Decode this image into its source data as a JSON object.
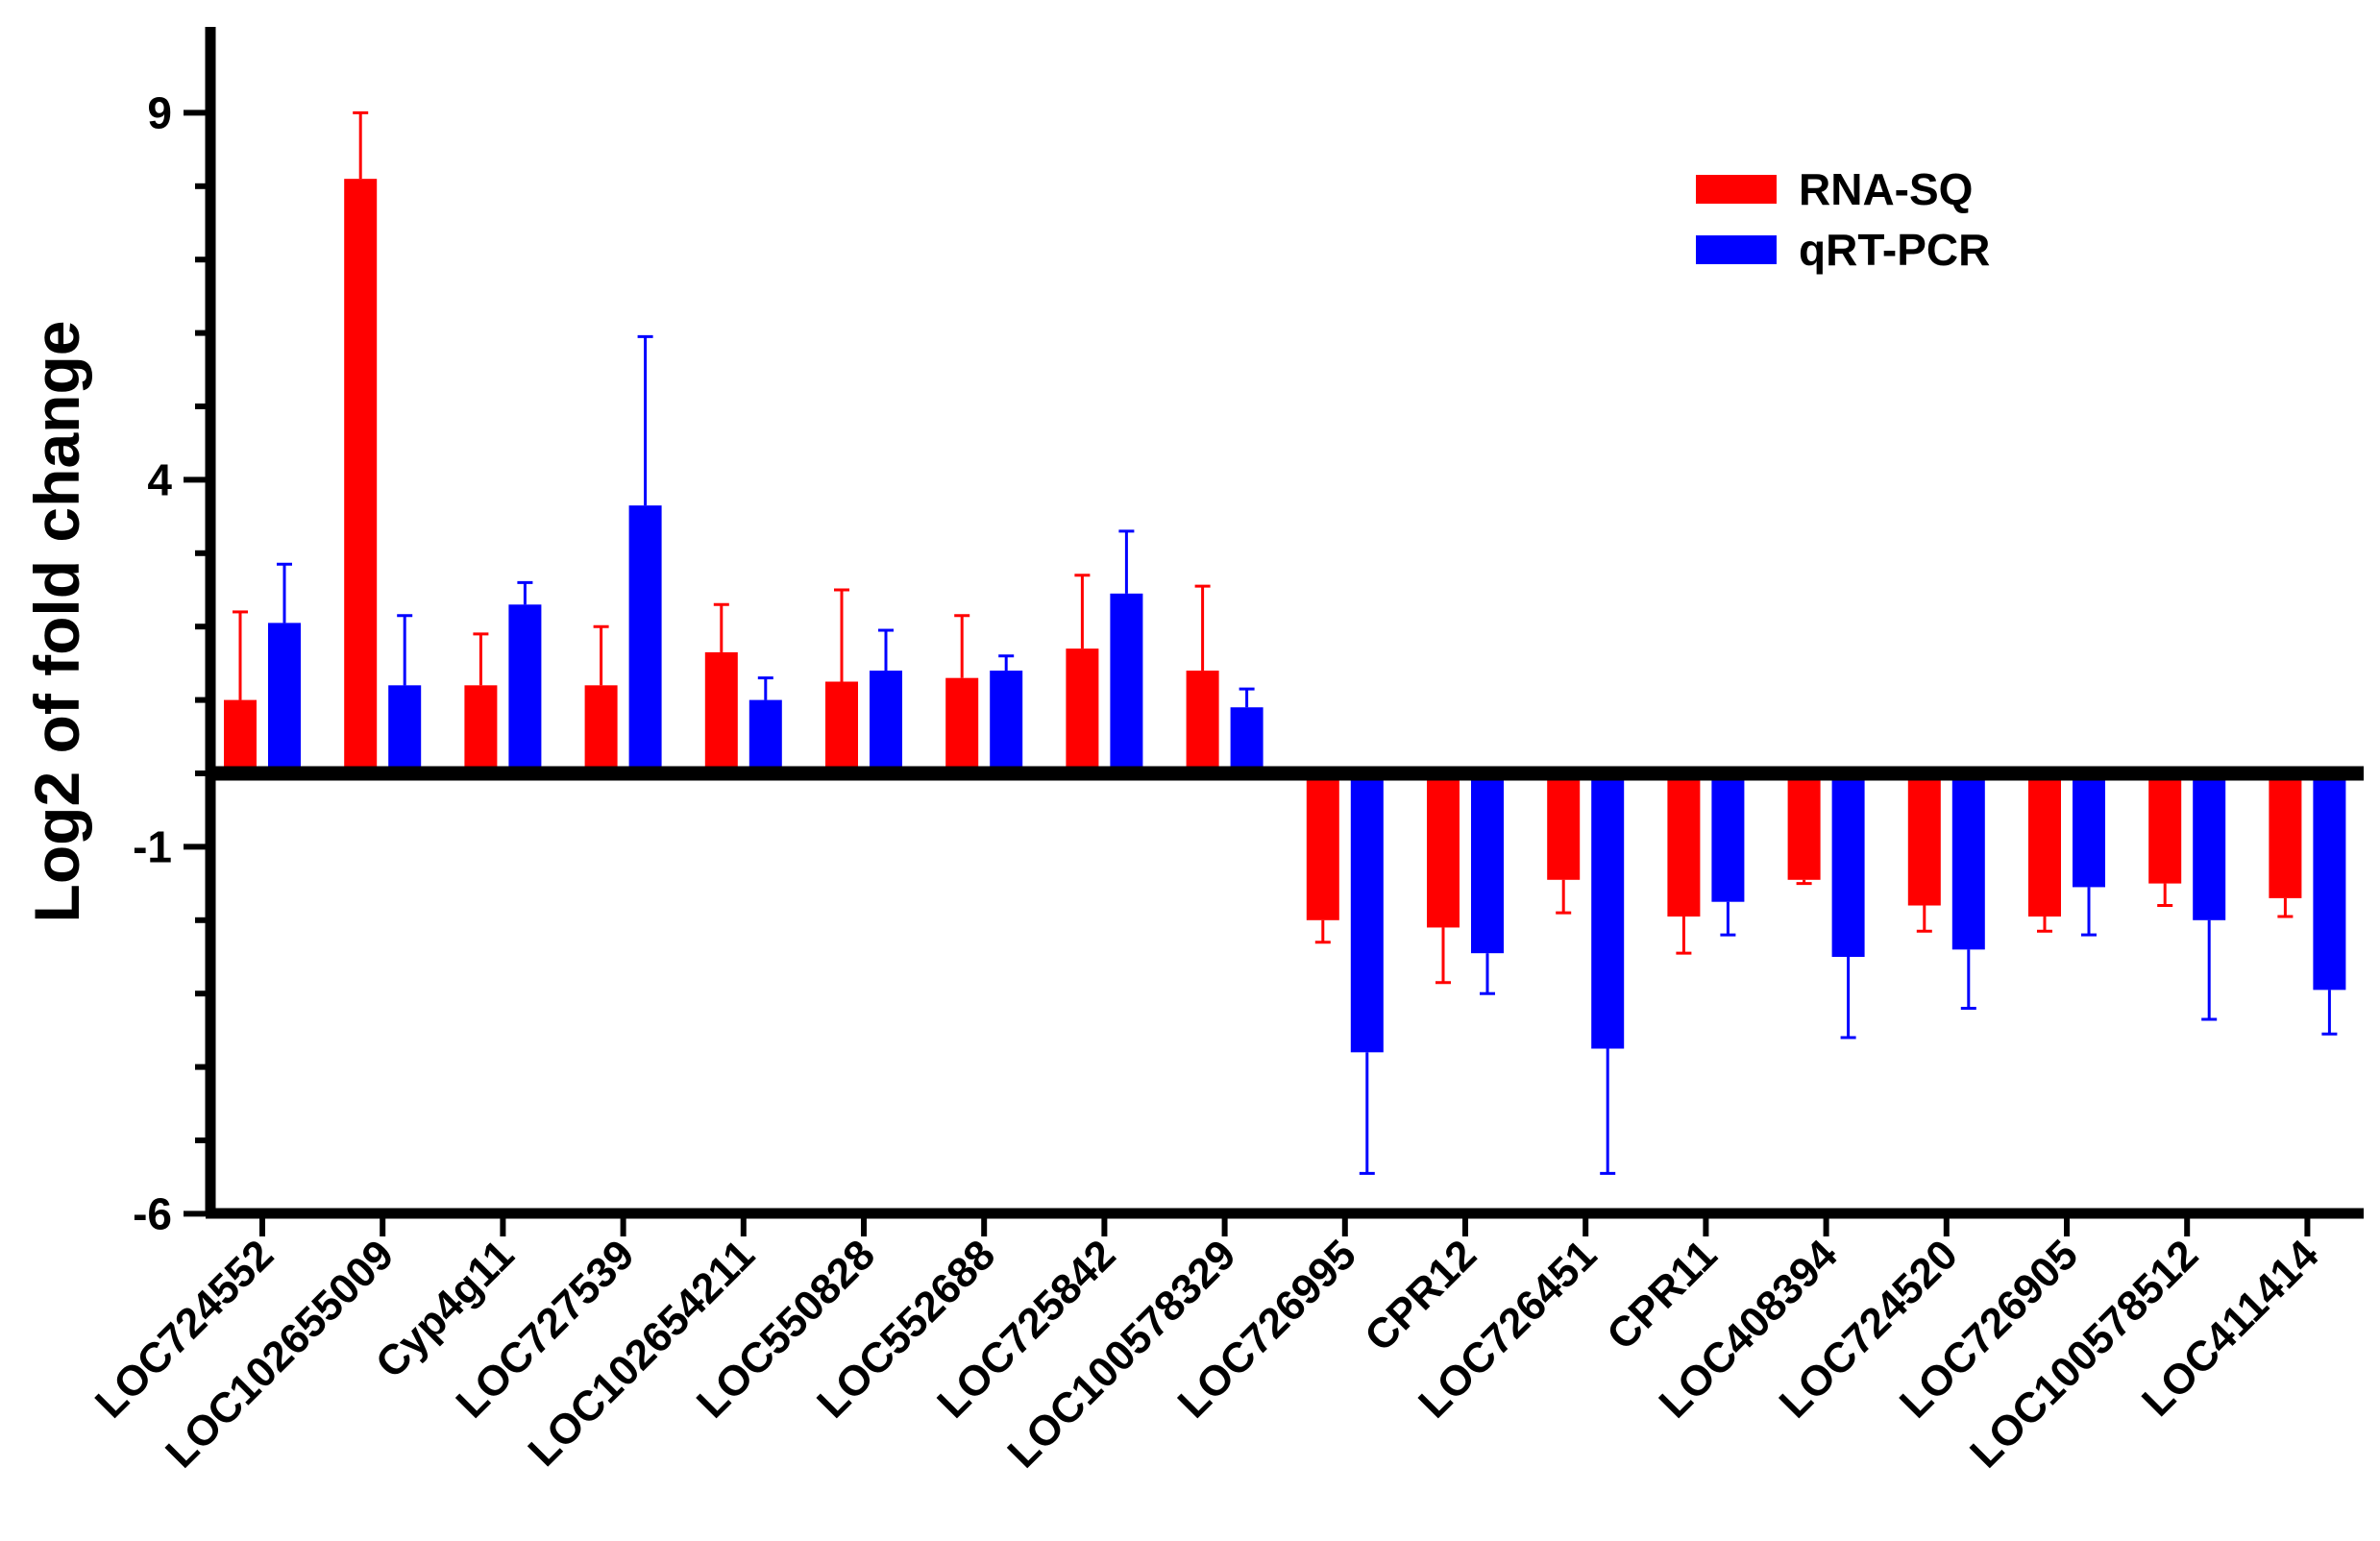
{
  "chart_data": {
    "type": "bar",
    "title": "",
    "xlabel": "",
    "ylabel": "Log2 of fold change",
    "ylim": [
      -6,
      10
    ],
    "yticks": [
      9,
      4,
      -1,
      -6
    ],
    "ytick_labels": [
      "9",
      "4",
      "-1",
      "-6"
    ],
    "legend_position": "top-right",
    "categories": [
      "LOC724552",
      "LOC102655009",
      "Cyp4g11",
      "LOC727539",
      "LOC102654211",
      "LOC550828",
      "LOC552688",
      "LOC725842",
      "LOC100578329",
      "LOC726995",
      "CPR12",
      "LOC726451",
      "CPR11",
      "LOC408394",
      "LOC724520",
      "LOC726905",
      "LOC100578512",
      "LOC411414"
    ],
    "series": [
      {
        "name": "RNA-SQ",
        "color": "#ff0000",
        "values": [
          1.0,
          8.1,
          1.2,
          1.2,
          1.65,
          1.25,
          1.3,
          1.7,
          1.4,
          -2.0,
          -2.1,
          -1.45,
          -1.95,
          -1.45,
          -1.8,
          -1.95,
          -1.5,
          -1.7
        ],
        "errors": [
          1.2,
          0.9,
          0.7,
          0.8,
          0.65,
          1.25,
          0.85,
          1.0,
          1.15,
          0.3,
          0.75,
          0.45,
          0.5,
          0.05,
          0.35,
          0.2,
          0.3,
          0.25
        ]
      },
      {
        "name": "qRT-PCR",
        "color": "#0000ff",
        "values": [
          2.05,
          1.2,
          2.3,
          3.65,
          1.0,
          1.4,
          1.4,
          2.45,
          0.9,
          -3.8,
          -2.45,
          -3.75,
          -1.75,
          -2.5,
          -2.4,
          -1.55,
          -2.0,
          -2.95
        ],
        "errors": [
          0.8,
          0.95,
          0.3,
          2.3,
          0.3,
          0.55,
          0.2,
          0.85,
          0.25,
          1.65,
          0.55,
          1.7,
          0.45,
          1.1,
          0.8,
          0.65,
          1.35,
          0.6
        ]
      }
    ]
  }
}
